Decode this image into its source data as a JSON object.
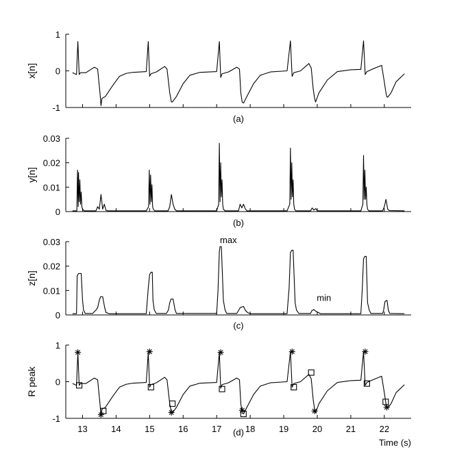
{
  "chart_data": [
    {
      "type": "line",
      "panel": "a",
      "ylabel": "x[n]",
      "caption": "(a)",
      "xlim": [
        12.5,
        22.8
      ],
      "ylim": [
        -1,
        1
      ],
      "yticks": [
        -1,
        0,
        1
      ],
      "series": [
        {
          "x": [
            12.7,
            12.82,
            12.86,
            12.9,
            12.94,
            13.1,
            13.35,
            13.45,
            13.52,
            13.55,
            13.58,
            13.68,
            13.9,
            14.1,
            14.3,
            14.5,
            14.9,
            14.96,
            15.0,
            15.04,
            15.2,
            15.45,
            15.52,
            15.6,
            15.65,
            15.68,
            15.8,
            16.0,
            16.2,
            16.5,
            17.0,
            17.08,
            17.12,
            17.16,
            17.35,
            17.6,
            17.68,
            17.72,
            17.76,
            17.8,
            17.9,
            18.1,
            18.3,
            18.6,
            19.1,
            19.2,
            19.25,
            19.3,
            19.5,
            19.75,
            19.82,
            19.88,
            19.92,
            19.95,
            20.05,
            20.3,
            20.6,
            21.0,
            21.3,
            21.38,
            21.43,
            21.48,
            21.65,
            21.92,
            22.0,
            22.04,
            22.07,
            22.1,
            22.2,
            22.35,
            22.6
          ],
          "y": [
            -0.05,
            -0.1,
            0.8,
            -0.1,
            -0.05,
            -0.05,
            0.1,
            0.05,
            -0.6,
            -0.95,
            -0.75,
            -0.7,
            -0.4,
            -0.15,
            -0.07,
            -0.04,
            -0.02,
            0.8,
            -0.15,
            -0.08,
            -0.03,
            0.12,
            0.05,
            -0.6,
            -0.85,
            -0.85,
            -0.7,
            -0.35,
            -0.12,
            -0.04,
            -0.02,
            0.8,
            -0.18,
            -0.08,
            -0.03,
            0.1,
            0.05,
            -0.6,
            -0.85,
            -0.88,
            -0.7,
            -0.35,
            -0.12,
            -0.03,
            0.0,
            0.82,
            -0.15,
            -0.05,
            0.0,
            0.2,
            0.08,
            -0.5,
            -0.75,
            -0.85,
            -0.6,
            -0.25,
            -0.02,
            0.03,
            0.04,
            0.82,
            -0.1,
            -0.02,
            0.05,
            0.15,
            -0.3,
            -0.55,
            -0.7,
            -0.72,
            -0.6,
            -0.3,
            -0.08
          ]
        }
      ]
    },
    {
      "type": "line",
      "panel": "b",
      "ylabel": "y[n]",
      "caption": "(b)",
      "xlim": [
        12.5,
        22.8
      ],
      "ylim": [
        0,
        0.03
      ],
      "yticks": [
        0,
        0.01,
        0.02,
        0.03
      ],
      "series": [
        {
          "x": [
            12.7,
            12.83,
            12.85,
            12.87,
            12.88,
            12.9,
            12.92,
            12.94,
            12.96,
            12.98,
            13.0,
            13.05,
            13.4,
            13.45,
            13.5,
            13.55,
            13.6,
            13.65,
            13.7,
            13.75,
            14.9,
            14.97,
            14.99,
            15.01,
            15.03,
            15.05,
            15.07,
            15.09,
            15.11,
            15.15,
            15.55,
            15.6,
            15.65,
            15.7,
            15.75,
            15.8,
            17.0,
            17.06,
            17.08,
            17.1,
            17.12,
            17.14,
            17.16,
            17.18,
            17.2,
            17.25,
            17.65,
            17.7,
            17.75,
            17.8,
            17.85,
            17.9,
            19.1,
            19.18,
            19.2,
            19.22,
            19.24,
            19.26,
            19.28,
            19.3,
            19.32,
            19.36,
            19.8,
            19.85,
            19.9,
            19.95,
            20.0,
            20.05,
            21.3,
            21.36,
            21.38,
            21.4,
            21.42,
            21.44,
            21.46,
            21.48,
            21.5,
            21.54,
            21.95,
            22.0,
            22.05,
            22.1,
            22.15,
            22.6
          ],
          "y": [
            0.0003,
            0.0003,
            0.017,
            0.002,
            0.016,
            0.004,
            0.013,
            0.003,
            0.008,
            0.002,
            0.001,
            0.0003,
            0.0003,
            0.002,
            0.001,
            0.007,
            0.001,
            0.003,
            0.0005,
            0.0003,
            0.0003,
            0.002,
            0.017,
            0.003,
            0.015,
            0.004,
            0.011,
            0.002,
            0.001,
            0.0003,
            0.0003,
            0.002,
            0.007,
            0.003,
            0.001,
            0.0003,
            0.0003,
            0.003,
            0.028,
            0.004,
            0.02,
            0.006,
            0.013,
            0.003,
            0.001,
            0.0003,
            0.0003,
            0.003,
            0.0015,
            0.003,
            0.0012,
            0.0003,
            0.0003,
            0.003,
            0.026,
            0.005,
            0.02,
            0.006,
            0.013,
            0.003,
            0.001,
            0.0003,
            0.0003,
            0.0015,
            0.0006,
            0.0012,
            0.0004,
            0.0003,
            0.0003,
            0.003,
            0.023,
            0.005,
            0.017,
            0.005,
            0.01,
            0.003,
            0.001,
            0.0003,
            0.0003,
            0.002,
            0.005,
            0.001,
            0.0004,
            0.0003
          ]
        }
      ]
    },
    {
      "type": "line",
      "panel": "c",
      "ylabel": "z[n]",
      "caption": "(c)",
      "xlim": [
        12.5,
        22.8
      ],
      "ylim": [
        0,
        0.03
      ],
      "yticks": [
        0,
        0.01,
        0.02,
        0.03
      ],
      "annotations": [
        {
          "text": "max",
          "x": 17.35,
          "y": 0.0295
        },
        {
          "text": "min",
          "x": 20.2,
          "y": 0.0058
        }
      ],
      "series": [
        {
          "x": [
            12.7,
            12.82,
            12.84,
            12.88,
            12.92,
            12.96,
            13.0,
            13.03,
            13.08,
            13.3,
            13.4,
            13.45,
            13.5,
            13.54,
            13.6,
            13.66,
            13.7,
            13.8,
            14.9,
            14.96,
            15.0,
            15.04,
            15.08,
            15.1,
            15.14,
            15.2,
            15.5,
            15.56,
            15.6,
            15.64,
            15.7,
            15.76,
            15.8,
            17.0,
            17.04,
            17.08,
            17.1,
            17.14,
            17.2,
            17.25,
            17.3,
            17.6,
            17.66,
            17.7,
            17.8,
            17.86,
            17.92,
            18.0,
            19.1,
            19.16,
            19.2,
            19.24,
            19.28,
            19.34,
            19.38,
            19.45,
            19.8,
            19.84,
            19.9,
            19.96,
            20.0,
            20.06,
            20.1,
            21.3,
            21.34,
            21.38,
            21.42,
            21.46,
            21.5,
            21.55,
            21.6,
            21.95,
            21.98,
            22.02,
            22.08,
            22.12,
            22.16,
            22.6
          ],
          "y": [
            0.0005,
            0.0005,
            0.016,
            0.017,
            0.017,
            0.017,
            0.006,
            0.002,
            0.0006,
            0.0006,
            0.002,
            0.003,
            0.006,
            0.0075,
            0.0075,
            0.003,
            0.001,
            0.0005,
            0.0005,
            0.011,
            0.0165,
            0.0175,
            0.0175,
            0.006,
            0.002,
            0.0006,
            0.0006,
            0.002,
            0.005,
            0.0065,
            0.0065,
            0.002,
            0.0006,
            0.0006,
            0.01,
            0.026,
            0.028,
            0.028,
            0.006,
            0.002,
            0.0006,
            0.0006,
            0.002,
            0.003,
            0.0035,
            0.0018,
            0.001,
            0.0005,
            0.0005,
            0.011,
            0.0255,
            0.0265,
            0.0265,
            0.005,
            0.002,
            0.0006,
            0.0006,
            0.0018,
            0.0022,
            0.0015,
            0.0012,
            0.0008,
            0.0005,
            0.0005,
            0.01,
            0.023,
            0.024,
            0.024,
            0.005,
            0.002,
            0.0006,
            0.0006,
            0.002,
            0.0055,
            0.006,
            0.002,
            0.0006,
            0.0005
          ]
        }
      ]
    },
    {
      "type": "line",
      "panel": "d",
      "ylabel": "R peak",
      "caption": "(d)",
      "xlabel": "Time (s)",
      "xlim": [
        12.5,
        22.8
      ],
      "ylim": [
        -1,
        1
      ],
      "yticks": [
        -1,
        0,
        1
      ],
      "xticks": [
        13,
        14,
        15,
        16,
        17,
        18,
        19,
        20,
        21,
        22
      ],
      "series": [
        {
          "x": [
            12.7,
            12.82,
            12.86,
            12.9,
            12.94,
            13.1,
            13.35,
            13.45,
            13.52,
            13.55,
            13.58,
            13.68,
            13.9,
            14.1,
            14.3,
            14.5,
            14.9,
            14.96,
            15.0,
            15.04,
            15.2,
            15.45,
            15.52,
            15.6,
            15.65,
            15.68,
            15.8,
            16.0,
            16.2,
            16.5,
            17.0,
            17.08,
            17.12,
            17.16,
            17.35,
            17.6,
            17.68,
            17.72,
            17.76,
            17.8,
            17.9,
            18.1,
            18.3,
            18.6,
            19.1,
            19.2,
            19.25,
            19.3,
            19.5,
            19.75,
            19.82,
            19.88,
            19.92,
            19.95,
            20.05,
            20.3,
            20.6,
            21.0,
            21.3,
            21.38,
            21.43,
            21.48,
            21.65,
            21.92,
            22.0,
            22.04,
            22.07,
            22.1,
            22.2,
            22.35,
            22.6
          ],
          "y": [
            -0.05,
            -0.1,
            0.8,
            -0.1,
            -0.05,
            -0.05,
            0.1,
            0.05,
            -0.6,
            -0.95,
            -0.75,
            -0.7,
            -0.4,
            -0.15,
            -0.07,
            -0.04,
            -0.02,
            0.8,
            -0.15,
            -0.08,
            -0.03,
            0.12,
            0.05,
            -0.6,
            -0.85,
            -0.85,
            -0.7,
            -0.35,
            -0.12,
            -0.04,
            -0.02,
            0.8,
            -0.18,
            -0.08,
            -0.03,
            0.1,
            0.05,
            -0.6,
            -0.85,
            -0.88,
            -0.7,
            -0.35,
            -0.12,
            -0.03,
            0.0,
            0.82,
            -0.15,
            -0.05,
            0.0,
            0.2,
            0.08,
            -0.5,
            -0.75,
            -0.85,
            -0.6,
            -0.25,
            -0.02,
            0.03,
            0.04,
            0.82,
            -0.1,
            -0.02,
            0.05,
            0.15,
            -0.3,
            -0.55,
            -0.7,
            -0.72,
            -0.6,
            -0.3,
            -0.08
          ]
        }
      ],
      "stars": [
        {
          "x": 12.86,
          "y": 0.8
        },
        {
          "x": 13.55,
          "y": -0.9
        },
        {
          "x": 15.0,
          "y": 0.82
        },
        {
          "x": 15.65,
          "y": -0.84
        },
        {
          "x": 17.12,
          "y": 0.8
        },
        {
          "x": 17.76,
          "y": -0.78
        },
        {
          "x": 19.25,
          "y": 0.82
        },
        {
          "x": 19.92,
          "y": -0.8
        },
        {
          "x": 21.43,
          "y": 0.82
        },
        {
          "x": 22.07,
          "y": -0.7
        }
      ],
      "squares": [
        {
          "x": 12.9,
          "y": -0.1
        },
        {
          "x": 13.62,
          "y": -0.8
        },
        {
          "x": 15.04,
          "y": -0.15
        },
        {
          "x": 15.68,
          "y": -0.6
        },
        {
          "x": 17.16,
          "y": -0.2
        },
        {
          "x": 17.8,
          "y": -0.88
        },
        {
          "x": 19.3,
          "y": -0.15
        },
        {
          "x": 19.82,
          "y": 0.25
        },
        {
          "x": 21.48,
          "y": -0.05
        },
        {
          "x": 22.04,
          "y": -0.55
        }
      ]
    }
  ]
}
